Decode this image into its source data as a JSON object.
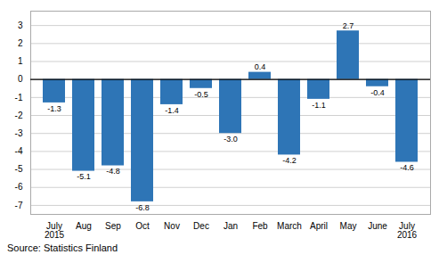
{
  "chart_data": {
    "type": "bar",
    "categories": [
      "July\n2015",
      "Aug",
      "Sep",
      "Oct",
      "Nov",
      "Dec",
      "Jan",
      "Feb",
      "March",
      "April",
      "May",
      "June",
      "July\n2016"
    ],
    "values": [
      -1.3,
      -5.1,
      -4.8,
      -6.8,
      -1.4,
      -0.5,
      -3.0,
      0.4,
      -4.2,
      -1.1,
      2.7,
      -0.4,
      -4.6
    ],
    "value_labels": [
      "-1.3",
      "-5.1",
      "-4.8",
      "-6.8",
      "-1.4",
      "-0.5",
      "-3.0",
      "0.4",
      "-4.2",
      "-1.1",
      "2.7",
      "-0.4",
      "-4.6"
    ],
    "data_labels": true,
    "color": "#2e75b6",
    "ylim": [
      -7.5,
      3.8
    ],
    "yticks": [
      -7,
      -6,
      -5,
      -4,
      -3,
      -2,
      -1,
      0,
      1,
      2,
      3
    ],
    "grid": true,
    "caption": "Source: Statistics Finland"
  }
}
